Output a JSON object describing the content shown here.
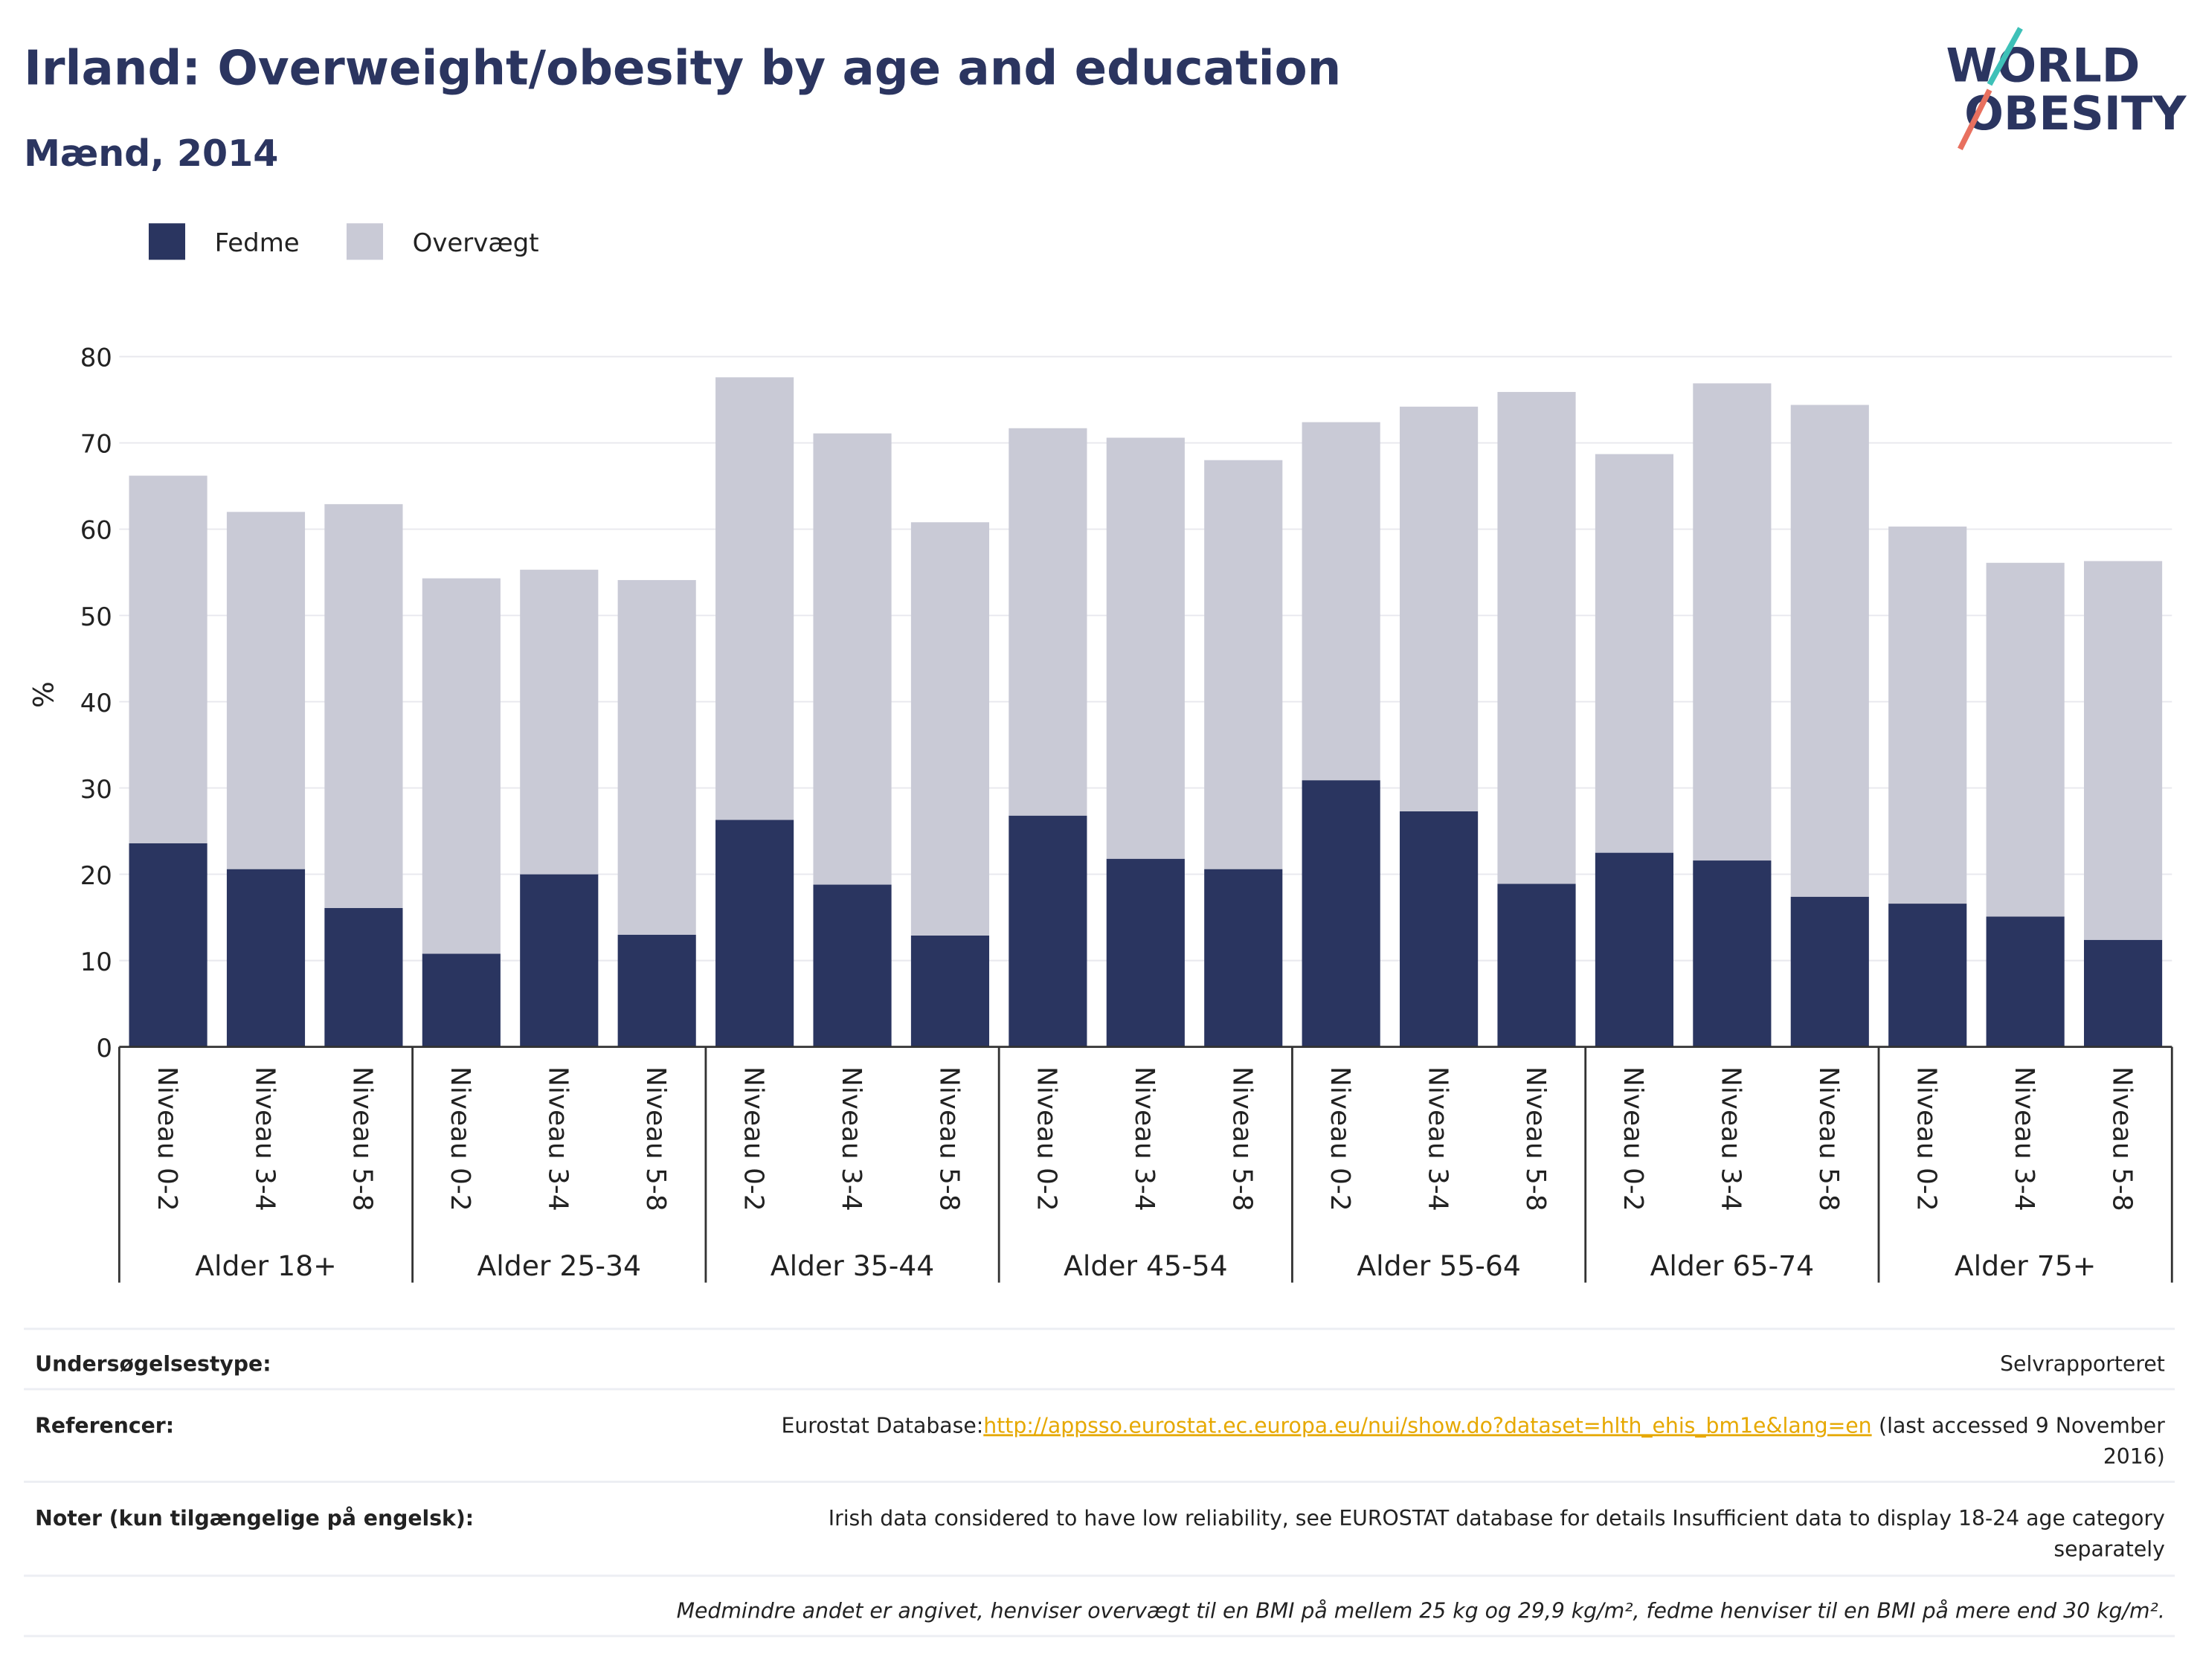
{
  "chart_data": {
    "type": "stacked_bar",
    "title": "Irland: Overweight/obesity by age and education",
    "subtitle": "Mænd, 2014",
    "y_label": "%",
    "categories": [
      "Niveau 0-2",
      "Niveau 3-4",
      "Niveau 5-8",
      "Niveau 0-2",
      "Niveau 3-4",
      "Niveau 5-8",
      "Niveau 0-2",
      "Niveau 3-4",
      "Niveau 5-8",
      "Niveau 0-2",
      "Niveau 3-4",
      "Niveau 5-8",
      "Niveau 0-2",
      "Niveau 3-4",
      "Niveau 5-8",
      "Niveau 0-2",
      "Niveau 3-4",
      "Niveau 5-8",
      "Niveau 0-2",
      "Niveau 3-4",
      "Niveau 5-8"
    ],
    "groups": [
      "Alder 18+",
      "Alder 25-34",
      "Alder 35-44",
      "Alder 45-54",
      "Alder 55-64",
      "Alder 65-74",
      "Alder 75+"
    ],
    "series": [
      {
        "name": "Fedme",
        "color": "#2a3560",
        "values": [
          23.6,
          20.6,
          16.1,
          10.8,
          20.0,
          13.0,
          26.3,
          18.8,
          12.9,
          26.8,
          21.8,
          20.6,
          30.9,
          27.3,
          18.9,
          22.5,
          21.6,
          17.4,
          16.6,
          15.1,
          12.4
        ]
      },
      {
        "name": "Overvægt",
        "color": "#c9cad6",
        "values": [
          42.6,
          41.4,
          46.8,
          43.5,
          35.3,
          41.1,
          51.3,
          52.3,
          47.9,
          44.9,
          48.8,
          47.4,
          41.5,
          46.9,
          57.0,
          46.2,
          55.3,
          57.0,
          43.7,
          41.0,
          43.9
        ]
      }
    ],
    "ylim": [
      0,
      80
    ],
    "yticks": [
      0,
      10,
      20,
      30,
      40,
      50,
      60,
      70,
      80
    ],
    "grid": true,
    "legend": "top-left"
  },
  "logo": {
    "line1": "WORLD",
    "line2": "OBESITY"
  },
  "footer": {
    "survey_label": "Undersøgelsestype:",
    "survey_value": "Selvrapporteret",
    "ref_label": "Referencer:",
    "ref_prefix": "Eurostat Database:",
    "ref_url": "http://appsso.eurostat.ec.europa.eu/nui/show.do?dataset=hlth_ehis_bm1e&lang=en",
    "ref_suffix_lines": [
      "(last accessed 9 November",
      "2016)"
    ],
    "notes_label": "Noter (kun tilgængelige på engelsk):",
    "notes_lines": [
      "Irish data considered to have low reliability, see EUROSTAT database for details Insufficient data to display 18-24 age category",
      "separately"
    ],
    "definition": "Medmindre andet er angivet, henviser overvægt til en BMI på mellem 25 kg og 29,9 kg/m², fedme henviser til en BMI på mere end 30 kg/m²."
  }
}
